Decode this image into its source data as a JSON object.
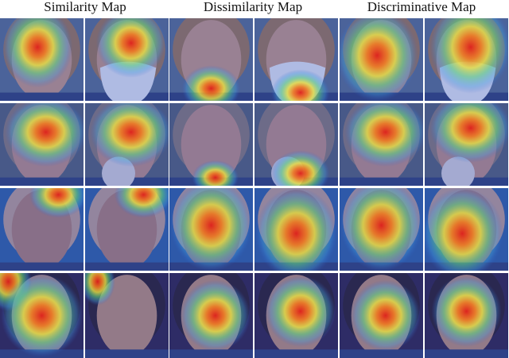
{
  "header": {
    "columns": [
      "Similarity Map",
      "Dissimilarity Map",
      "Discriminative Map"
    ]
  }
}
